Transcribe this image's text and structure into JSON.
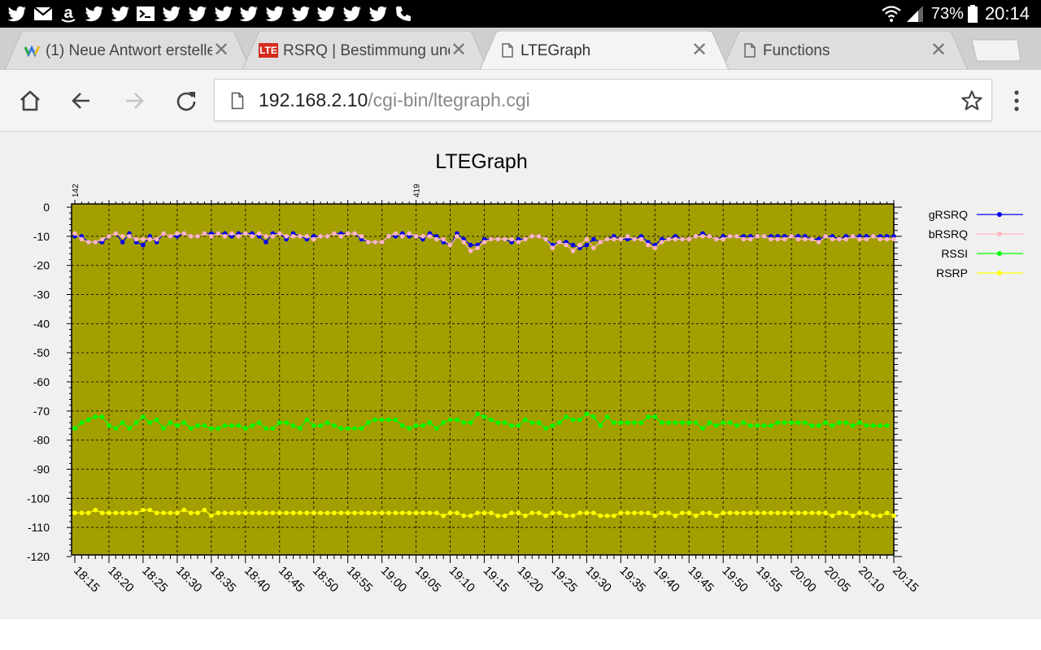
{
  "statusbar": {
    "notification_icons": [
      "twitter-icon",
      "gmail-icon",
      "amazon-icon",
      "twitter-icon",
      "twitter-icon",
      "terminal-icon",
      "twitter-icon",
      "twitter-icon",
      "twitter-icon",
      "twitter-icon",
      "twitter-icon",
      "twitter-icon",
      "twitter-icon",
      "twitter-icon",
      "twitter-icon",
      "phone-icon"
    ],
    "battery": "73%",
    "time": "20:14"
  },
  "tabs": [
    {
      "title": "(1) Neue Antwort erstelle",
      "favicon": "wordpress-favicon",
      "active": false
    },
    {
      "title": "RSRQ | Bestimmung und",
      "favicon": "lte-favicon",
      "favicon_text": "LTE",
      "active": false
    },
    {
      "title": "LTEGraph",
      "favicon": "page-icon",
      "active": true
    },
    {
      "title": "Functions",
      "favicon": "page-icon",
      "active": false
    }
  ],
  "toolbar": {
    "url_host": "192.168.2.10",
    "url_path": "/cgi-bin/ltegraph.cgi"
  },
  "chart_data": {
    "type": "line",
    "title": "LTEGraph",
    "xlabel": "",
    "ylabel": "",
    "ylim": [
      -120,
      0
    ],
    "yticks": [
      0,
      -10,
      -20,
      -30,
      -40,
      -50,
      -60,
      -70,
      -80,
      -90,
      -100,
      -110,
      -120
    ],
    "xticks": [
      "18:15",
      "18:20",
      "18:25",
      "18:30",
      "18:35",
      "18:40",
      "18:45",
      "18:50",
      "18:55",
      "19:00",
      "19:05",
      "19:10",
      "19:15",
      "19:20",
      "19:25",
      "19:30",
      "19:35",
      "19:40",
      "19:45",
      "19:50",
      "19:55",
      "20:00",
      "20:05",
      "20:10",
      "20:15"
    ],
    "xlim": [
      "18:15",
      "20:15"
    ],
    "top_annotations": [
      {
        "text": "142",
        "at": "18:15"
      },
      {
        "text": "419",
        "at": "19:05"
      }
    ],
    "grid": true,
    "legend_position": "right",
    "sample_interval_minutes": 1,
    "series": [
      {
        "name": "gRSRQ",
        "color": "#0000ee",
        "values": [
          -10,
          -10,
          -12,
          -12,
          -12,
          -10,
          -9,
          -12,
          -9,
          -12,
          -13,
          -10,
          -12,
          -9,
          -10,
          -10,
          -9,
          -10,
          -10,
          -9,
          -9,
          -9,
          -9,
          -10,
          -9,
          -9,
          -9,
          -10,
          -12,
          -9,
          -9,
          -11,
          -9,
          -10,
          -11,
          -10,
          -10,
          -10,
          -9,
          -9,
          -9,
          -9,
          -11,
          -12,
          -12,
          -12,
          -10,
          -10,
          -9,
          -10,
          -10,
          -11,
          -9,
          -10,
          -12,
          -13,
          -9,
          -11,
          -13,
          -13,
          -11,
          -11,
          -11,
          -11,
          -12,
          -11,
          -11,
          -10,
          -10,
          -11,
          -13,
          -12,
          -12,
          -13,
          -14,
          -13,
          -11,
          -12,
          -11,
          -10,
          -11,
          -11,
          -11,
          -10,
          -12,
          -13,
          -11,
          -11,
          -10,
          -11,
          -11,
          -10,
          -9,
          -10,
          -11,
          -10,
          -10,
          -10,
          -10,
          -10,
          -10,
          -10,
          -10,
          -10,
          -10,
          -10,
          -10,
          -10,
          -11,
          -11,
          -10,
          -10,
          -11,
          -10,
          -10,
          -10,
          -10,
          -10,
          -10,
          -10,
          -10
        ],
        "show_points": true
      },
      {
        "name": "bRSRQ",
        "color": "#ffb6c1",
        "values": [
          -9,
          -11,
          -12,
          -12,
          -11,
          -10,
          -9,
          -10,
          -10,
          -11,
          -11,
          -11,
          -11,
          -9,
          -10,
          -9,
          -9,
          -10,
          -10,
          -9,
          -10,
          -9,
          -10,
          -9,
          -10,
          -9,
          -10,
          -9,
          -10,
          -10,
          -9,
          -10,
          -10,
          -10,
          -10,
          -11,
          -10,
          -10,
          -9,
          -10,
          -9,
          -9,
          -10,
          -12,
          -12,
          -12,
          -10,
          -9,
          -10,
          -9,
          -10,
          -10,
          -10,
          -11,
          -11,
          -13,
          -10,
          -12,
          -15,
          -14,
          -12,
          -11,
          -11,
          -11,
          -11,
          -12,
          -11,
          -10,
          -10,
          -11,
          -14,
          -12,
          -13,
          -15,
          -13,
          -11,
          -14,
          -12,
          -11,
          -11,
          -11,
          -10,
          -11,
          -11,
          -13,
          -14,
          -12,
          -11,
          -11,
          -11,
          -11,
          -10,
          -10,
          -10,
          -11,
          -11,
          -10,
          -10,
          -11,
          -11,
          -10,
          -10,
          -11,
          -11,
          -11,
          -10,
          -11,
          -11,
          -11,
          -12,
          -10,
          -11,
          -11,
          -11,
          -10,
          -11,
          -11,
          -10,
          -11,
          -11,
          -11
        ],
        "show_points": true
      },
      {
        "name": "RSSI",
        "color": "#00ff00",
        "values": [
          -76,
          -74,
          -73,
          -72,
          -72,
          -75,
          -76,
          -74,
          -76,
          -74,
          -72,
          -74,
          -73,
          -76,
          -74,
          -75,
          -74,
          -76,
          -75,
          -75,
          -76,
          -76,
          -75,
          -75,
          -75,
          -76,
          -75,
          -74,
          -76,
          -76,
          -74,
          -74,
          -75,
          -76,
          -73,
          -75,
          -75,
          -74,
          -75,
          -76,
          -76,
          -76,
          -76,
          -74,
          -73,
          -73,
          -73,
          -73,
          -75,
          -76,
          -75,
          -75,
          -74,
          -76,
          -74,
          -73,
          -73,
          -74,
          -74,
          -71,
          -72,
          -73,
          -74,
          -74,
          -75,
          -75,
          -73,
          -74,
          -74,
          -76,
          -75,
          -74,
          -72,
          -73,
          -73,
          -71,
          -72,
          -75,
          -72,
          -74,
          -74,
          -74,
          -74,
          -74,
          -72,
          -72,
          -74,
          -74,
          -74,
          -74,
          -74,
          -74,
          -76,
          -74,
          -75,
          -74,
          -74,
          -75,
          -74,
          -75,
          -75,
          -75,
          -75,
          -74,
          -74,
          -74,
          -74,
          -74,
          -75,
          -75,
          -74,
          -75,
          -74,
          -74,
          -75,
          -74,
          -75,
          -75,
          -75,
          -75
        ],
        "show_points": true
      },
      {
        "name": "RSRP",
        "color": "#ffff00",
        "values": [
          -105,
          -105,
          -105,
          -104,
          -105,
          -105,
          -105,
          -105,
          -105,
          -105,
          -104,
          -104,
          -105,
          -105,
          -105,
          -105,
          -104,
          -105,
          -105,
          -104,
          -106,
          -105,
          -105,
          -105,
          -105,
          -105,
          -105,
          -105,
          -105,
          -105,
          -105,
          -105,
          -105,
          -105,
          -105,
          -105,
          -105,
          -105,
          -105,
          -105,
          -105,
          -105,
          -105,
          -105,
          -105,
          -105,
          -105,
          -105,
          -105,
          -105,
          -105,
          -105,
          -105,
          -105,
          -106,
          -105,
          -105,
          -106,
          -106,
          -105,
          -105,
          -105,
          -106,
          -106,
          -105,
          -105,
          -106,
          -105,
          -105,
          -106,
          -105,
          -105,
          -106,
          -106,
          -105,
          -105,
          -105,
          -106,
          -106,
          -106,
          -105,
          -105,
          -105,
          -105,
          -105,
          -106,
          -105,
          -105,
          -106,
          -105,
          -105,
          -106,
          -105,
          -105,
          -106,
          -105,
          -105,
          -105,
          -105,
          -105,
          -105,
          -105,
          -105,
          -105,
          -105,
          -105,
          -105,
          -105,
          -105,
          -105,
          -105,
          -106,
          -105,
          -105,
          -106,
          -105,
          -105,
          -106,
          -106,
          -105,
          -106
        ],
        "show_points": true
      }
    ]
  },
  "colors": {
    "plot_background": "#a39f00",
    "grid": "#1a1a00",
    "page_background": "#f0f0f0"
  }
}
